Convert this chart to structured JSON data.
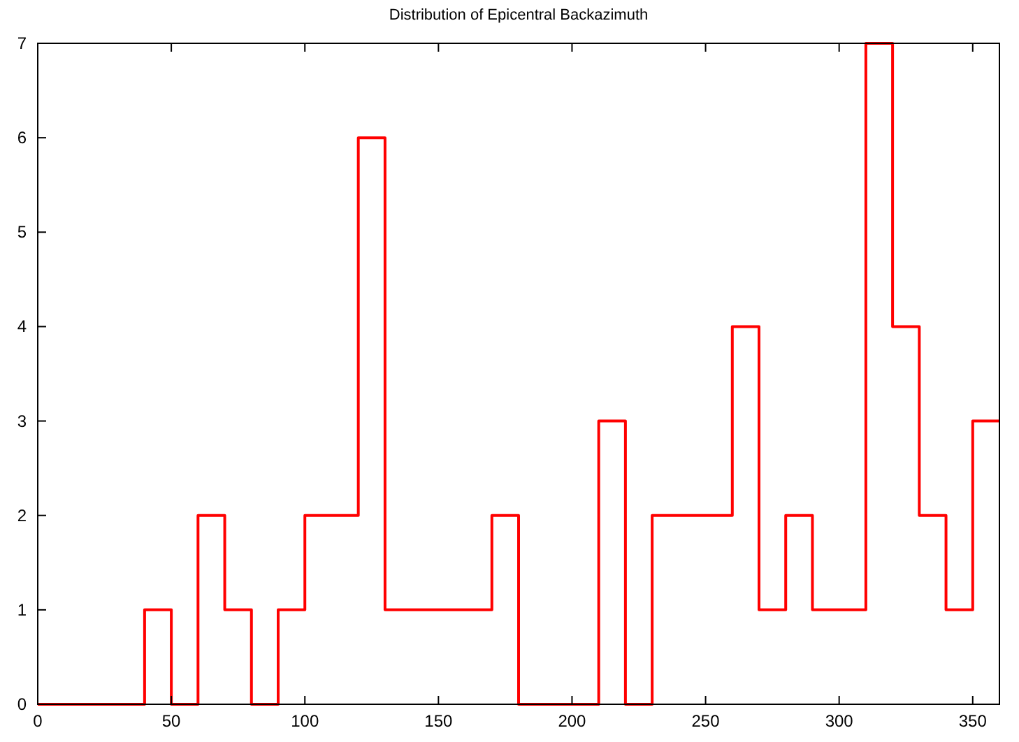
{
  "chart_data": {
    "type": "step",
    "title": "Distribution of Epicentral Backazimuth",
    "x": [
      0,
      10,
      20,
      30,
      40,
      50,
      60,
      70,
      80,
      90,
      100,
      110,
      120,
      130,
      140,
      150,
      160,
      170,
      180,
      190,
      200,
      210,
      220,
      230,
      240,
      250,
      260,
      270,
      280,
      290,
      300,
      310,
      320,
      330,
      340,
      350,
      360
    ],
    "values": [
      0,
      0,
      0,
      0,
      1,
      0,
      2,
      1,
      0,
      1,
      2,
      2,
      6,
      1,
      1,
      1,
      1,
      2,
      0,
      0,
      0,
      3,
      0,
      2,
      2,
      2,
      4,
      1,
      2,
      1,
      1,
      7,
      4,
      2,
      1,
      3,
      3
    ],
    "color": "#ff0000",
    "xlim": [
      0,
      360
    ],
    "xticks": [
      0,
      50,
      100,
      150,
      200,
      250,
      300,
      350
    ],
    "ylim": [
      0,
      7
    ],
    "yticks": [
      0,
      1,
      2,
      3,
      4,
      5,
      6,
      7
    ]
  }
}
